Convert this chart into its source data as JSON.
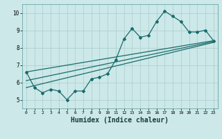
{
  "title": "",
  "xlabel": "Humidex (Indice chaleur)",
  "ylabel": "",
  "background_color": "#cce8e8",
  "grid_color": "#aacece",
  "line_color": "#1a6b6b",
  "xlim": [
    -0.5,
    23.5
  ],
  "ylim": [
    4.5,
    10.5
  ],
  "xticks": [
    0,
    1,
    2,
    3,
    4,
    5,
    6,
    7,
    8,
    9,
    10,
    11,
    12,
    13,
    14,
    15,
    16,
    17,
    18,
    19,
    20,
    21,
    22,
    23
  ],
  "yticks": [
    5,
    6,
    7,
    8,
    9,
    10
  ],
  "main_series_x": [
    0,
    1,
    2,
    3,
    4,
    5,
    6,
    7,
    8,
    9,
    10,
    11,
    12,
    13,
    14,
    15,
    16,
    17,
    18,
    19,
    20,
    21,
    22,
    23
  ],
  "main_series_y": [
    6.6,
    5.7,
    5.4,
    5.6,
    5.5,
    5.0,
    5.5,
    5.5,
    6.2,
    6.3,
    6.5,
    7.3,
    8.5,
    9.1,
    8.6,
    8.7,
    9.5,
    10.1,
    9.8,
    9.5,
    8.9,
    8.9,
    9.0,
    8.4
  ],
  "line1_x": [
    0,
    23
  ],
  "line1_y": [
    6.6,
    8.4
  ],
  "line2_x": [
    0,
    23
  ],
  "line2_y": [
    6.1,
    8.35
  ],
  "line3_x": [
    0,
    23
  ],
  "line3_y": [
    5.7,
    8.3
  ]
}
